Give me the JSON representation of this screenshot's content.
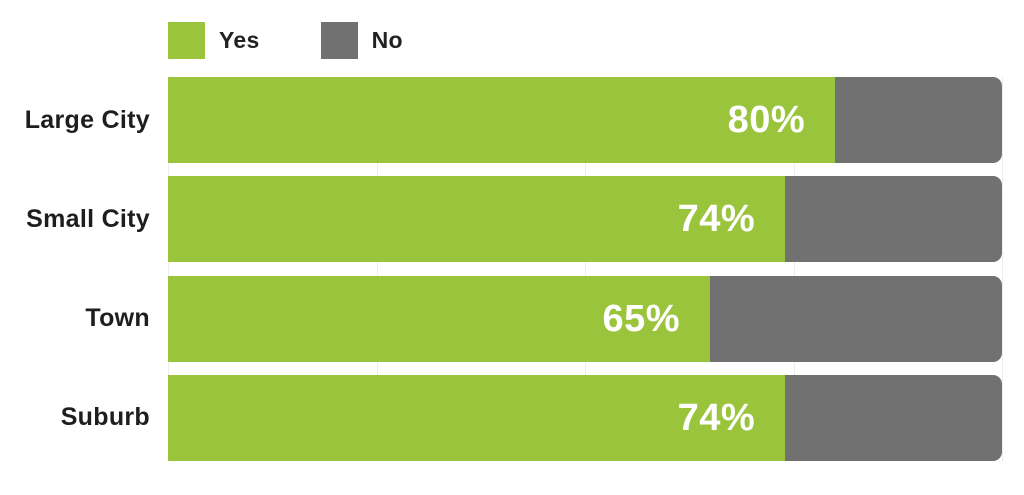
{
  "legend": {
    "items": [
      {
        "label": "Yes",
        "color": "#9BC43D"
      },
      {
        "label": "No",
        "color": "#717171"
      }
    ]
  },
  "chart_data": {
    "type": "bar",
    "orientation": "horizontal",
    "stacked": true,
    "title": "",
    "xlabel": "",
    "ylabel": "",
    "xlim": [
      0,
      100
    ],
    "categories": [
      "Large City",
      "Small City",
      "Town",
      "Suburb"
    ],
    "series": [
      {
        "name": "Yes",
        "color": "#9BC43D",
        "values": [
          80,
          74,
          65,
          74
        ],
        "value_labels": [
          "80%",
          "74%",
          "65%",
          "74%"
        ]
      },
      {
        "name": "No",
        "color": "#717171",
        "values": [
          20,
          26,
          35,
          26
        ],
        "value_labels": [
          "",
          "",
          "",
          ""
        ]
      }
    ],
    "legend_position": "top",
    "grid": true,
    "gridline_positions_pct": [
      0,
      25,
      50,
      75,
      100
    ],
    "grid_color": "#ededed",
    "value_label_color": "#ffffff",
    "category_label_color": "#1e1e1e"
  }
}
